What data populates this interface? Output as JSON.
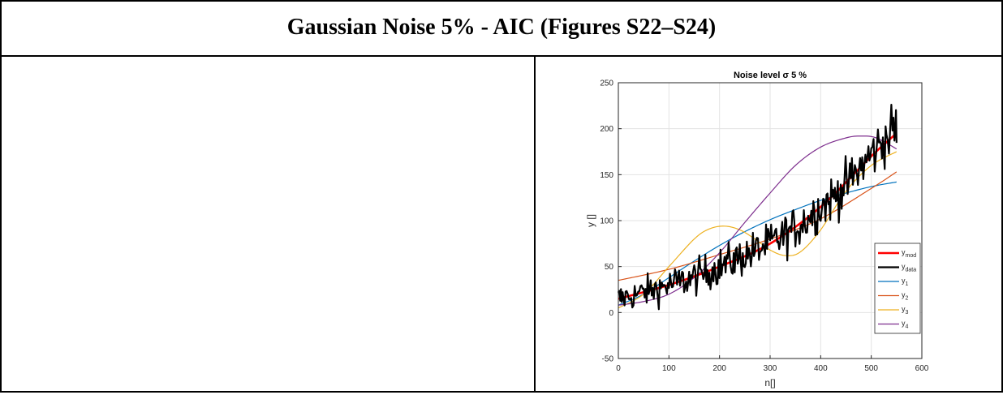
{
  "table": {
    "header": "Gaussian Noise 5% - AIC (Figures S22–S24)"
  },
  "chart_data": {
    "type": "line",
    "title": "Noise level σ 5 %",
    "xlabel": "n[]",
    "ylabel": "y []",
    "xlim": [
      0,
      600
    ],
    "ylim": [
      -50,
      250
    ],
    "xticks": [
      0,
      100,
      200,
      300,
      400,
      500,
      600
    ],
    "yticks": [
      -50,
      0,
      50,
      100,
      150,
      200,
      250
    ],
    "grid": true,
    "legend_position": "bottom-right",
    "series": [
      {
        "name": "y_mod",
        "label_base": "y",
        "label_sub": "mod",
        "color": "#ff0000",
        "width": 2.6,
        "x": [
          0,
          100,
          200,
          300,
          400,
          500,
          550
        ],
        "y": [
          15,
          30,
          50,
          75,
          115,
          170,
          195
        ]
      },
      {
        "name": "y_data",
        "label_base": "y",
        "label_sub": "data",
        "color": "#000000",
        "width": 2.2,
        "x": [
          0,
          50,
          100,
          150,
          200,
          250,
          300,
          350,
          400,
          430,
          460,
          500,
          530,
          550
        ],
        "y": [
          15,
          22,
          30,
          38,
          50,
          62,
          75,
          92,
          115,
          128,
          145,
          172,
          190,
          203
        ],
        "noise_amp": 8
      },
      {
        "name": "y_1",
        "label_base": "y",
        "label_sub": "1",
        "color": "#0072bd",
        "width": 1.2,
        "x": [
          0,
          50,
          100,
          150,
          200,
          250,
          300,
          350,
          400,
          450,
          500,
          550
        ],
        "y": [
          8,
          20,
          38,
          56,
          73,
          88,
          101,
          112,
          122,
          130,
          137,
          142
        ]
      },
      {
        "name": "y_2",
        "label_base": "y",
        "label_sub": "2",
        "color": "#d95319",
        "width": 1.2,
        "x": [
          0,
          100,
          200,
          300,
          400,
          500,
          550
        ],
        "y": [
          35,
          47,
          63,
          80,
          102,
          135,
          153
        ]
      },
      {
        "name": "y_3",
        "label_base": "y",
        "label_sub": "3",
        "color": "#edb120",
        "width": 1.2,
        "x": [
          0,
          50,
          100,
          150,
          180,
          210,
          240,
          270,
          300,
          330,
          360,
          400,
          450,
          500,
          550
        ],
        "y": [
          5,
          20,
          50,
          80,
          91,
          94,
          90,
          80,
          68,
          62,
          66,
          90,
          132,
          160,
          175
        ]
      },
      {
        "name": "y_4",
        "label_base": "y",
        "label_sub": "4",
        "color": "#7e2f8e",
        "width": 1.2,
        "x": [
          0,
          50,
          100,
          150,
          200,
          250,
          300,
          350,
          400,
          450,
          480,
          510,
          550
        ],
        "y": [
          8,
          12,
          20,
          38,
          65,
          98,
          130,
          160,
          180,
          190,
          192,
          190,
          178
        ]
      }
    ]
  }
}
